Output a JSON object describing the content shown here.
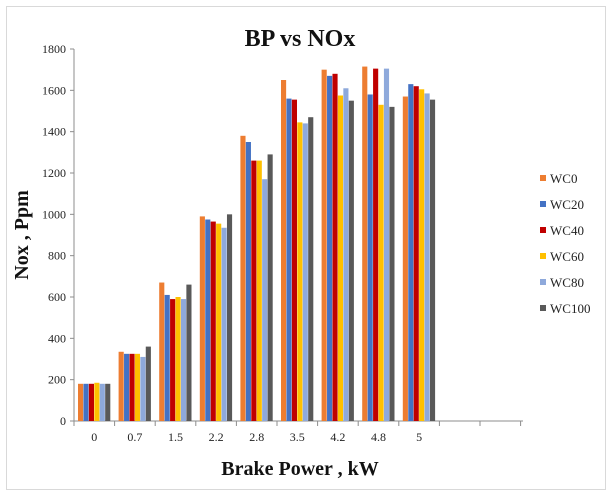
{
  "chart_data": {
    "type": "bar",
    "title": "BP vs NOx",
    "xlabel": "Brake Power , kW",
    "ylabel": "Nox , Ppm",
    "ylim": [
      0,
      1800
    ],
    "yticks": [
      0,
      200,
      400,
      600,
      800,
      1000,
      1200,
      1400,
      1600,
      1800
    ],
    "grid": false,
    "legend_position": "right",
    "categories": [
      "0",
      "0.7",
      "1.5",
      "2.2",
      "2.8",
      "3.5",
      "4.2",
      "4.8",
      "5"
    ],
    "series": [
      {
        "name": "WC0",
        "color": "#ED7D31",
        "values": [
          180,
          335,
          670,
          990,
          1380,
          1650,
          1700,
          1715,
          1570
        ]
      },
      {
        "name": "WC20",
        "color": "#4472C4",
        "values": [
          180,
          325,
          610,
          975,
          1350,
          1560,
          1670,
          1580,
          1630
        ]
      },
      {
        "name": "WC40",
        "color": "#C00000",
        "values": [
          180,
          325,
          590,
          965,
          1260,
          1555,
          1680,
          1705,
          1620
        ]
      },
      {
        "name": "WC60",
        "color": "#FFC000",
        "values": [
          185,
          325,
          600,
          955,
          1260,
          1445,
          1575,
          1530,
          1605
        ]
      },
      {
        "name": "WC80",
        "color": "#8EA9DB",
        "values": [
          180,
          310,
          590,
          935,
          1170,
          1440,
          1610,
          1705,
          1585
        ]
      },
      {
        "name": "WC100",
        "color": "#595959",
        "values": [
          180,
          360,
          660,
          1000,
          1290,
          1470,
          1550,
          1520,
          1555
        ]
      }
    ]
  }
}
